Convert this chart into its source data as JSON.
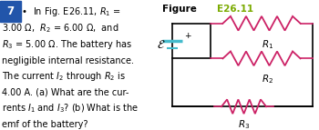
{
  "fig_number": "7",
  "fig_number_bg": "#2255aa",
  "fig_number_color": "#ffffff",
  "title_highlight": "E26.11",
  "title_highlight_color": "#7aaa00",
  "resistor_color": "#cc2266",
  "wire_color": "#000000",
  "battery_line1_color": "#44bbcc",
  "battery_line2_color": "#44bbcc",
  "background_color": "#ffffff",
  "R1_label": "$R_1$",
  "R2_label": "$R_2$",
  "R3_label": "$R_3$",
  "text_lines": [
    "In Fig. E26.11, $R_1$ =",
    "3.00 \\Omega,  $R_2$ = 6.00 \\Omega,  and",
    "$R_3$ = 5.00 \\Omega. The battery has",
    "negligible internal resistance.",
    "The current $I_2$ through $R_2$ is",
    "4.00 A. (a) What are the cur-",
    "rents $I_1$ and $I_3$? (b) What is the",
    "emf of the battery?"
  ]
}
